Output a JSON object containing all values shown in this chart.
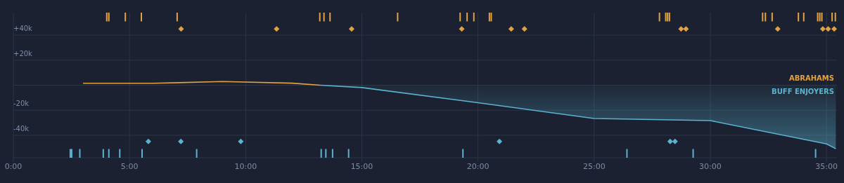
{
  "chart_data": {
    "type": "line",
    "xlim": [
      0,
      35.45
    ],
    "ylim": [
      -58000,
      58000
    ],
    "xticks": [
      {
        "value": 0,
        "label": "0:00"
      },
      {
        "value": 5,
        "label": "5:00"
      },
      {
        "value": 10,
        "label": "10:00"
      },
      {
        "value": 15,
        "label": "15:00"
      },
      {
        "value": 20,
        "label": "20:00"
      },
      {
        "value": 25,
        "label": "25:00"
      },
      {
        "value": 30,
        "label": "30:00"
      },
      {
        "value": 35,
        "label": "35:00"
      }
    ],
    "yticks": [
      {
        "value": -40000,
        "label": "-40k"
      },
      {
        "value": -20000,
        "label": "-20k"
      },
      {
        "value": 0,
        "label": null
      },
      {
        "value": 20000,
        "label": "+20k"
      },
      {
        "value": 40000,
        "label": "+40k"
      }
    ],
    "grid": true,
    "legend": "right",
    "series": [
      {
        "name": "ABRAHAMS",
        "color": "#e0a243",
        "x": [
          3,
          6,
          9,
          12,
          13.2
        ],
        "values": [
          1500,
          1500,
          2900,
          1600,
          0
        ]
      },
      {
        "name": "BUFF ENJOYERS",
        "type": "area",
        "color": "#5bb3d0",
        "x": [
          13.2,
          15,
          20,
          25,
          30,
          35,
          35.4
        ],
        "values": [
          0,
          -1900,
          -14000,
          -26600,
          -28300,
          -46900,
          -50800
        ]
      },
      {
        "type": "scatter",
        "marker": "diamond",
        "color": "#e0a243",
        "x": [
          7.22,
          11.33,
          14.56,
          19.3,
          21.43,
          22.0,
          28.74,
          28.95,
          32.9,
          34.84,
          35.07,
          35.33
        ],
        "values": [
          45000,
          45000,
          45000,
          45000,
          45000,
          45000,
          45000,
          45000,
          45000,
          45000,
          45000,
          45000
        ]
      },
      {
        "type": "scatter",
        "marker": "diamond",
        "color": "#5bb3d0",
        "x": [
          5.81,
          7.21,
          9.79,
          20.92,
          28.27,
          28.48
        ],
        "values": [
          -45000,
          -45000,
          -45000,
          -45000,
          -45000,
          -45000
        ]
      },
      {
        "type": "bar",
        "base": [
          51000,
          51000,
          51000,
          51000,
          51000,
          51000,
          51000,
          51000,
          51000,
          51000,
          51000,
          51000,
          51000,
          51000,
          51000,
          51000,
          51000,
          51000,
          51000,
          51000,
          51000,
          51000,
          51000,
          51000,
          51000,
          51000,
          51000,
          51000
        ],
        "color": "#e0a243",
        "x": [
          4.02,
          4.11,
          4.82,
          5.51,
          7.05,
          13.19,
          13.37,
          13.63,
          16.54,
          19.23,
          19.53,
          19.82,
          20.49,
          20.57,
          27.81,
          28.08,
          28.16,
          28.24,
          32.25,
          32.37,
          32.66,
          33.79,
          34.02,
          34.62,
          34.71,
          34.8,
          35.24,
          35.38
        ],
        "values": [
          7000,
          7000,
          7000,
          7000,
          7000,
          7000,
          7000,
          7000,
          7000,
          7000,
          7000,
          7000,
          7000,
          7000,
          7000,
          7000,
          7000,
          7000,
          7000,
          7000,
          7000,
          7000,
          7000,
          7000,
          7000,
          7000,
          7000,
          7000
        ]
      },
      {
        "type": "bar",
        "base": [
          -58000,
          -58000,
          -58000,
          -58000,
          -58000,
          -58000,
          -58000,
          -58000,
          -58000,
          -58000,
          -58000,
          -58000,
          -58000,
          -58000,
          -58000,
          -58000
        ],
        "color": "#5bb3d0",
        "x": [
          2.45,
          2.51,
          2.86,
          3.87,
          4.11,
          4.58,
          5.54,
          7.89,
          13.25,
          13.45,
          13.74,
          14.43,
          19.35,
          26.41,
          29.26,
          34.53
        ],
        "values": [
          7000,
          7000,
          7000,
          7000,
          7000,
          7000,
          7000,
          7000,
          7000,
          7000,
          7000,
          7000,
          7000,
          7000,
          7000,
          7000
        ]
      }
    ]
  }
}
